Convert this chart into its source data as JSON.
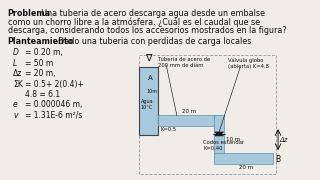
{
  "bg_color": "#f0ede8",
  "pipe_color": "#a8c8dc",
  "pipe_edge": "#6090a8",
  "tank_color": "#a8c8dc",
  "tank_edge": "#444444",
  "text_color": "#111111",
  "dash_color": "#999999",
  "problem_bold": "Problema",
  "problem_rest": ": Una tuberia de acero descarga agua desde un embalse",
  "line2": "como un chorro libre a la atmósfera. ¿Cuál es el caudal que se",
  "line3": "descarga, considerando todos los accesorios mostrados en la figura?",
  "plan_bold": "Planteamiento",
  "plan_rest": ": Dado una tuberia con perdidas de carga locales",
  "param_lines": [
    [
      "D",
      "= 0.20 m,"
    ],
    [
      "L",
      "= 50 m"
    ],
    [
      "Δz",
      "= 20 m,"
    ],
    [
      "ΣK",
      "= 0.5+ 2(0.4)+"
    ],
    [
      "",
      "4.8 = 6.1"
    ],
    [
      "e",
      "= 0.000046 m,"
    ],
    [
      "v",
      "= 1.31E-6 m²/s"
    ]
  ],
  "label_pipe": "Tuberia de acero de\n200 mm de diám",
  "label_valve": "Válvula globo\n(abierta) K=4.8",
  "label_codo": "Codos estandar\nK=0.40",
  "label_k05": "K=0.5",
  "label_20m_top": "20 m",
  "label_10m": "10 m",
  "label_20m_bot": "20 m",
  "label_az": "Δz",
  "label_A": "A",
  "label_B": "B",
  "label_agua": "Agua\n10°C",
  "label_10m_tank": "10m"
}
